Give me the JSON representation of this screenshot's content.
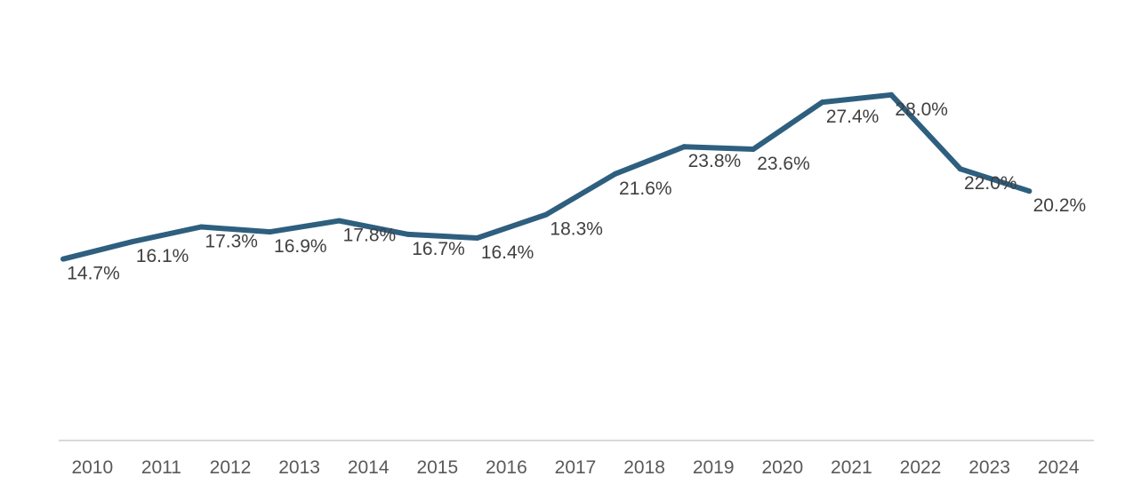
{
  "chart_data": {
    "type": "line",
    "categories": [
      "2010",
      "2011",
      "2012",
      "2013",
      "2014",
      "2015",
      "2016",
      "2017",
      "2018",
      "2019",
      "2020",
      "2021",
      "2022",
      "2023",
      "2024"
    ],
    "values": [
      14.7,
      16.1,
      17.3,
      16.9,
      17.8,
      16.7,
      16.4,
      18.3,
      21.6,
      23.8,
      23.6,
      27.4,
      28.0,
      22.0,
      20.2
    ],
    "data_labels": [
      "14.7%",
      "16.1%",
      "17.3%",
      "16.9%",
      "17.8%",
      "16.7%",
      "16.4%",
      "18.3%",
      "21.6%",
      "23.8%",
      "23.6%",
      "27.4%",
      "28.0%",
      "22.0%",
      "20.2%"
    ],
    "title": "",
    "xlabel": "",
    "ylabel": "",
    "ylim": [
      0,
      30
    ],
    "grid": false,
    "legend": "none",
    "colors": {
      "line": "#2e5f7f",
      "axis": "#d9d9d9",
      "label": "#404040",
      "tick": "#595959"
    }
  }
}
